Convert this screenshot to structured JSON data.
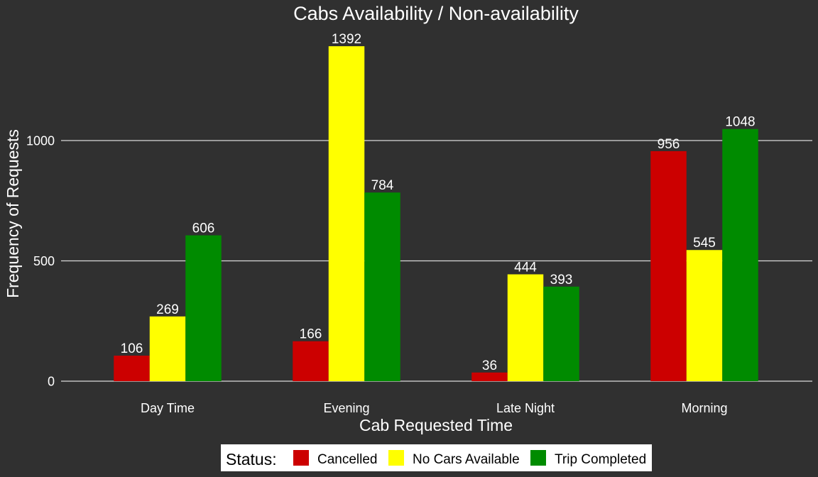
{
  "chart_data": {
    "type": "bar",
    "title": "Cabs Availability / Non-availability",
    "xlabel": "Cab Requested Time",
    "ylabel": "Frequency of Requests",
    "categories": [
      "Day Time",
      "Evening",
      "Late Night",
      "Morning"
    ],
    "series": [
      {
        "name": "Cancelled",
        "color": "#cc0000",
        "values": [
          106,
          166,
          36,
          956
        ]
      },
      {
        "name": "No Cars Available",
        "color": "#ffff00",
        "values": [
          269,
          1392,
          444,
          545
        ]
      },
      {
        "name": "Trip Completed",
        "color": "#008b00",
        "values": [
          606,
          784,
          393,
          1048
        ]
      }
    ],
    "yticks": [
      0,
      500,
      1000
    ],
    "ylim": [
      0,
      1392
    ],
    "grid": "horizontal major",
    "legend": {
      "title": "Status:",
      "placement": "bottom"
    },
    "background_color": "#303030",
    "text_color": "#ffffff"
  }
}
